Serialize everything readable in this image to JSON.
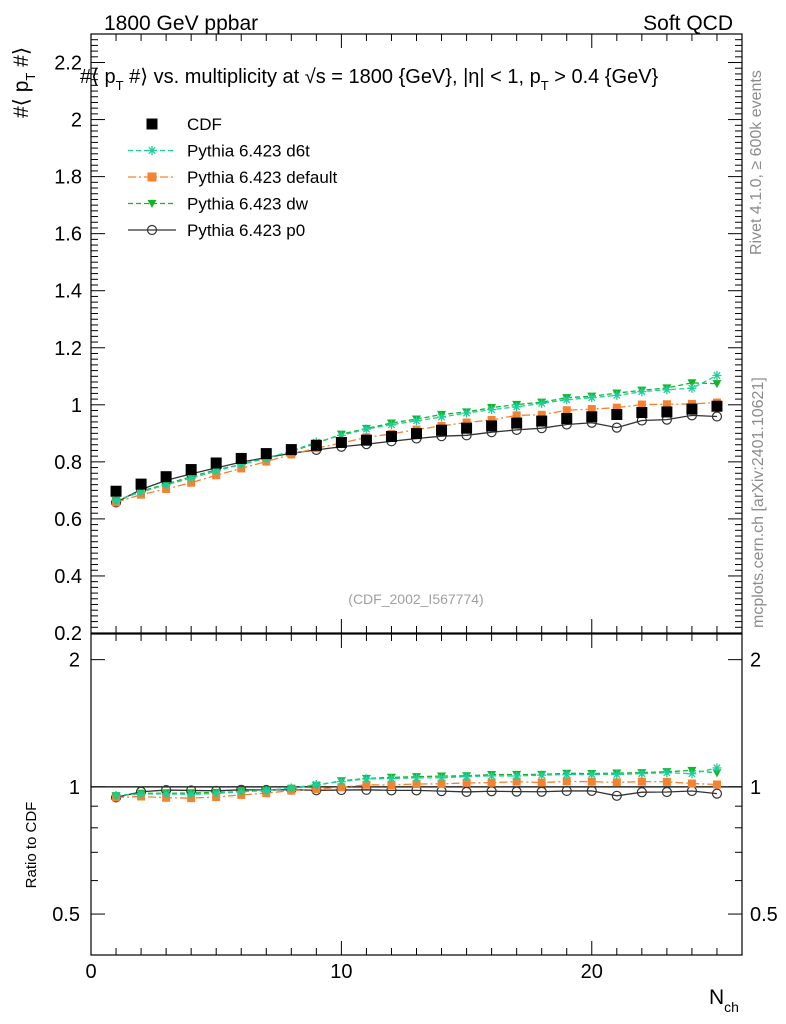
{
  "header": {
    "left": "1800 GeV ppbar",
    "right": "Soft QCD",
    "title_prefix": "#⟨ p",
    "title_sub1": "T",
    "title_mid1": " #⟩ vs. multiplicity at ",
    "title_sqrt": "√s",
    "title_mid2": " = 1800 {GeV}, |η| < 1, p",
    "title_sub2": "T",
    "title_suffix": " > 0.4 {GeV}"
  },
  "side": {
    "rivet": "Rivet 4.1.0, ≥ 600k events",
    "mcplots": "mcplots.cern.ch [arXiv:2401.10621]"
  },
  "tag": "(CDF_2002_I567774)",
  "ylabel": {
    "prefix": "#⟨ p",
    "sub": "T",
    "suffix": " #⟩"
  },
  "xlabel": {
    "main": "N",
    "sub": "ch"
  },
  "ratio_label": "Ratio to CDF",
  "colors": {
    "cdf": "#000000",
    "d6t": "#1fcf9a",
    "default": "#f58231",
    "dw": "#11b52a",
    "p0": "#333333"
  },
  "chart_data": {
    "type": "scatter",
    "x": [
      1,
      2,
      3,
      4,
      5,
      6,
      7,
      8,
      9,
      10,
      11,
      12,
      13,
      14,
      15,
      16,
      17,
      18,
      19,
      20,
      21,
      22,
      23,
      24,
      25
    ],
    "xlim": [
      0,
      26
    ],
    "main_ylim": [
      0.2,
      2.3
    ],
    "main_yticks": [
      "0.2",
      "0.4",
      "0.6",
      "0.8",
      "1",
      "1.2",
      "1.4",
      "1.6",
      "1.8",
      "2",
      "2.2"
    ],
    "ratio_ylim": [
      0.4,
      2.3
    ],
    "ratio_yticks": [
      "0.5",
      "1",
      "2"
    ],
    "xticks": [
      "0",
      "10",
      "20"
    ],
    "series": [
      {
        "key": "cdf",
        "name": "CDF",
        "marker": "square",
        "line": "none",
        "values": [
          0.697,
          0.722,
          0.748,
          0.773,
          0.796,
          0.812,
          0.829,
          0.843,
          0.858,
          0.868,
          0.876,
          0.889,
          0.899,
          0.911,
          0.918,
          0.926,
          0.936,
          0.943,
          0.952,
          0.958,
          0.966,
          0.973,
          0.975,
          0.985,
          0.995
        ]
      },
      {
        "key": "d6t",
        "name": "Pythia 6.423 d6t",
        "marker": "star",
        "line": "dash",
        "values": [
          0.665,
          0.694,
          0.72,
          0.742,
          0.768,
          0.791,
          0.812,
          0.838,
          0.869,
          0.893,
          0.915,
          0.93,
          0.944,
          0.957,
          0.971,
          0.983,
          0.993,
          1.005,
          1.018,
          1.025,
          1.033,
          1.046,
          1.053,
          1.058,
          1.103
        ]
      },
      {
        "key": "default",
        "name": "Pythia 6.423 default",
        "marker": "square",
        "line": "dashdot",
        "values": [
          0.658,
          0.685,
          0.705,
          0.727,
          0.753,
          0.777,
          0.801,
          0.826,
          0.848,
          0.866,
          0.886,
          0.898,
          0.913,
          0.926,
          0.938,
          0.947,
          0.963,
          0.965,
          0.981,
          0.985,
          0.99,
          1.001,
          1.002,
          1.003,
          1.008
        ]
      },
      {
        "key": "dw",
        "name": "Pythia 6.423 dw",
        "marker": "triangle-down",
        "line": "dash",
        "values": [
          0.664,
          0.697,
          0.722,
          0.748,
          0.772,
          0.791,
          0.814,
          0.836,
          0.865,
          0.897,
          0.917,
          0.936,
          0.95,
          0.966,
          0.975,
          0.99,
          1.001,
          1.009,
          1.025,
          1.03,
          1.041,
          1.051,
          1.059,
          1.077,
          1.074
        ]
      },
      {
        "key": "p0",
        "name": "Pythia 6.423 p0",
        "marker": "circle-open",
        "line": "solid",
        "values": [
          0.658,
          0.703,
          0.735,
          0.758,
          0.779,
          0.799,
          0.815,
          0.83,
          0.842,
          0.853,
          0.862,
          0.872,
          0.882,
          0.89,
          0.893,
          0.904,
          0.912,
          0.918,
          0.931,
          0.937,
          0.92,
          0.945,
          0.948,
          0.963,
          0.959
        ]
      }
    ]
  }
}
